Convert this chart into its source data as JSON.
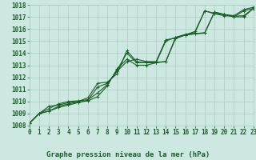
{
  "bg_color": "#cce8e0",
  "grid_color": "#aaccc4",
  "line_color": "#1a5e28",
  "xlim": [
    0,
    23
  ],
  "ylim": [
    1008,
    1018
  ],
  "xticks": [
    0,
    1,
    2,
    3,
    4,
    5,
    6,
    7,
    8,
    9,
    10,
    11,
    12,
    13,
    14,
    15,
    16,
    17,
    18,
    19,
    20,
    21,
    22,
    23
  ],
  "yticks": [
    1008,
    1009,
    1010,
    1011,
    1012,
    1013,
    1014,
    1015,
    1016,
    1017,
    1018
  ],
  "xlabel": "Graphe pression niveau de la mer (hPa)",
  "line1_x": [
    0,
    1,
    2,
    3,
    4,
    5,
    6,
    7,
    8,
    9,
    10,
    11,
    12,
    13,
    14,
    15,
    16,
    17,
    18,
    19,
    20,
    21,
    22,
    23
  ],
  "line1_y": [
    1008.2,
    1009.0,
    1009.6,
    1009.7,
    1009.9,
    1010.0,
    1010.3,
    1011.5,
    1011.6,
    1012.3,
    1014.2,
    1013.3,
    1013.2,
    1013.2,
    1013.3,
    1015.3,
    1015.5,
    1015.6,
    1015.7,
    1017.4,
    1017.2,
    1017.1,
    1017.6,
    1017.8
  ],
  "line2_x": [
    0,
    1,
    2,
    3,
    4,
    5,
    6,
    7,
    8,
    9,
    10,
    11,
    12,
    13,
    14,
    15,
    16,
    17,
    18,
    19,
    20,
    21,
    22,
    23
  ],
  "line2_y": [
    1008.2,
    1009.0,
    1009.2,
    1009.6,
    1009.8,
    1009.95,
    1010.05,
    1010.4,
    1011.3,
    1012.7,
    1013.5,
    1013.0,
    1013.0,
    1013.2,
    1015.0,
    1015.3,
    1015.55,
    1015.7,
    1017.5,
    1017.25,
    1017.1,
    1017.05,
    1017.1,
    1017.7
  ],
  "line3_x": [
    0,
    1,
    2,
    3,
    4,
    5,
    6,
    7,
    8,
    9,
    10,
    11,
    12,
    13,
    14,
    15,
    16,
    17,
    18,
    19,
    20,
    21,
    22,
    23
  ],
  "line3_y": [
    1008.2,
    1009.0,
    1009.2,
    1009.5,
    1009.7,
    1009.9,
    1010.1,
    1011.2,
    1011.5,
    1012.5,
    1013.3,
    1013.5,
    1013.3,
    1013.3,
    1015.1,
    1015.25,
    1015.5,
    1015.8,
    1017.5,
    1017.3,
    1017.2,
    1017.0,
    1017.5,
    1017.7
  ],
  "line4_x": [
    0,
    1,
    2,
    3,
    4,
    5,
    6,
    7,
    8,
    9,
    10,
    11,
    12,
    13,
    14,
    15,
    16,
    17,
    18,
    19,
    20,
    21,
    22,
    23
  ],
  "line4_y": [
    1008.2,
    1009.0,
    1009.4,
    1009.8,
    1010.0,
    1010.05,
    1010.15,
    1010.7,
    1011.4,
    1012.6,
    1014.0,
    1013.2,
    1013.25,
    1013.25,
    1013.3,
    1015.2,
    1015.5,
    1015.6,
    1015.65,
    1017.4,
    1017.2,
    1017.0,
    1017.0,
    1017.7
  ],
  "lw": 0.8,
  "markersize": 2.5,
  "tick_fontsize": 5.5,
  "label_fontsize": 6.5
}
